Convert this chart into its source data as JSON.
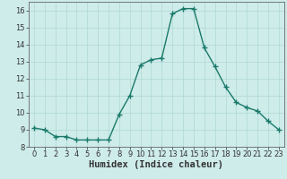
{
  "x": [
    0,
    1,
    2,
    3,
    4,
    5,
    6,
    7,
    8,
    9,
    10,
    11,
    12,
    13,
    14,
    15,
    16,
    17,
    18,
    19,
    20,
    21,
    22,
    23
  ],
  "y": [
    9.1,
    9.0,
    8.6,
    8.6,
    8.4,
    8.4,
    8.4,
    8.4,
    9.9,
    11.0,
    12.8,
    13.1,
    13.2,
    15.8,
    16.1,
    16.1,
    13.8,
    12.7,
    11.5,
    10.6,
    10.3,
    10.1,
    9.5,
    9.0
  ],
  "line_color": "#1a7a6a",
  "marker": "+",
  "marker_size": 4,
  "marker_color": "#1a7a6a",
  "background_color": "#ceecea",
  "grid_color": "#aed8d4",
  "grid_minor_color": "#c8e8e4",
  "xlabel": "Humidex (Indice chaleur)",
  "xlim": [
    -0.5,
    23.5
  ],
  "ylim": [
    8,
    16.5
  ],
  "yticks": [
    8,
    9,
    10,
    11,
    12,
    13,
    14,
    15,
    16
  ],
  "xticks": [
    0,
    1,
    2,
    3,
    4,
    5,
    6,
    7,
    8,
    9,
    10,
    11,
    12,
    13,
    14,
    15,
    16,
    17,
    18,
    19,
    20,
    21,
    22,
    23
  ],
  "tick_fontsize": 6,
  "xlabel_fontsize": 7.5,
  "tick_color": "#333333",
  "spine_color": "#666666"
}
